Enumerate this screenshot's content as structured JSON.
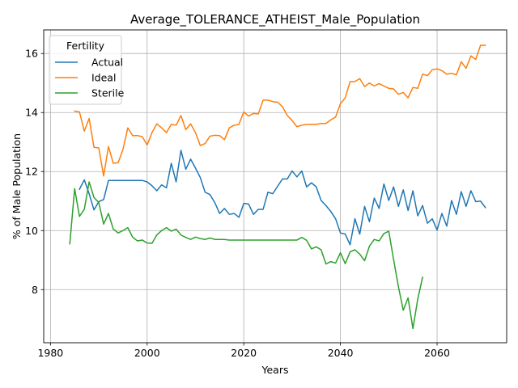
{
  "chart_data": {
    "type": "line",
    "title": "Average_TOLERANCE_ATHEIST_Male_Population",
    "xlabel": "Years",
    "ylabel": "% of Male Population",
    "xlim": [
      1978.6,
      2074.4
    ],
    "ylim": [
      6.2,
      16.8
    ],
    "xticks": [
      1980,
      2000,
      2020,
      2040,
      2060
    ],
    "yticks": [
      8,
      10,
      12,
      14,
      16
    ],
    "grid": true,
    "legend": {
      "title": "Fertility",
      "placement": "top-left"
    },
    "series": [
      {
        "name": "Actual",
        "color": "#1f77b4",
        "points": [
          [
            1986,
            11.4
          ],
          [
            1987,
            11.72
          ],
          [
            1988,
            11.25
          ],
          [
            1989,
            10.7
          ],
          [
            1990,
            10.98
          ],
          [
            1991,
            11.05
          ],
          [
            1992,
            11.7
          ],
          [
            1993,
            11.7
          ],
          [
            1994,
            11.7
          ],
          [
            1995,
            11.7
          ],
          [
            1996,
            11.7
          ],
          [
            1997,
            11.7
          ],
          [
            1998,
            11.7
          ],
          [
            1999,
            11.7
          ],
          [
            2000,
            11.65
          ],
          [
            2001,
            11.52
          ],
          [
            2002,
            11.35
          ],
          [
            2003,
            11.55
          ],
          [
            2004,
            11.45
          ],
          [
            2005,
            12.28
          ],
          [
            2006,
            11.65
          ],
          [
            2007,
            12.72
          ],
          [
            2008,
            12.08
          ],
          [
            2009,
            12.42
          ],
          [
            2010,
            12.12
          ],
          [
            2011,
            11.8
          ],
          [
            2012,
            11.3
          ],
          [
            2013,
            11.22
          ],
          [
            2014,
            10.95
          ],
          [
            2015,
            10.58
          ],
          [
            2016,
            10.75
          ],
          [
            2017,
            10.55
          ],
          [
            2018,
            10.58
          ],
          [
            2019,
            10.45
          ],
          [
            2020,
            10.92
          ],
          [
            2021,
            10.9
          ],
          [
            2022,
            10.55
          ],
          [
            2023,
            10.72
          ],
          [
            2024,
            10.72
          ],
          [
            2025,
            11.3
          ],
          [
            2026,
            11.25
          ],
          [
            2027,
            11.5
          ],
          [
            2028,
            11.75
          ],
          [
            2029,
            11.75
          ],
          [
            2030,
            12.02
          ],
          [
            2031,
            11.82
          ],
          [
            2032,
            12.02
          ],
          [
            2033,
            11.48
          ],
          [
            2034,
            11.62
          ],
          [
            2035,
            11.48
          ],
          [
            2036,
            11.02
          ],
          [
            2037,
            10.85
          ],
          [
            2038,
            10.65
          ],
          [
            2039,
            10.4
          ],
          [
            2040,
            9.92
          ],
          [
            2041,
            9.88
          ],
          [
            2042,
            9.52
          ],
          [
            2043,
            10.4
          ],
          [
            2044,
            9.88
          ],
          [
            2045,
            10.82
          ],
          [
            2046,
            10.3
          ],
          [
            2047,
            11.1
          ],
          [
            2048,
            10.75
          ],
          [
            2049,
            11.58
          ],
          [
            2050,
            11.02
          ],
          [
            2051,
            11.48
          ],
          [
            2052,
            10.82
          ],
          [
            2053,
            11.38
          ],
          [
            2054,
            10.68
          ],
          [
            2055,
            11.35
          ],
          [
            2056,
            10.5
          ],
          [
            2057,
            10.85
          ],
          [
            2058,
            10.25
          ],
          [
            2059,
            10.4
          ],
          [
            2060,
            10.02
          ],
          [
            2061,
            10.58
          ],
          [
            2062,
            10.15
          ],
          [
            2063,
            11.02
          ],
          [
            2064,
            10.55
          ],
          [
            2065,
            11.32
          ],
          [
            2066,
            10.82
          ],
          [
            2067,
            11.35
          ],
          [
            2068,
            10.98
          ],
          [
            2069,
            11.0
          ],
          [
            2070,
            10.78
          ]
        ]
      },
      {
        "name": "Ideal",
        "color": "#ff7f0e",
        "points": [
          [
            1985,
            14.05
          ],
          [
            1986,
            14.02
          ],
          [
            1987,
            13.37
          ],
          [
            1988,
            13.8
          ],
          [
            1989,
            12.82
          ],
          [
            1990,
            12.8
          ],
          [
            1991,
            11.85
          ],
          [
            1992,
            12.85
          ],
          [
            1993,
            12.28
          ],
          [
            1994,
            12.3
          ],
          [
            1995,
            12.75
          ],
          [
            1996,
            13.48
          ],
          [
            1997,
            13.22
          ],
          [
            1998,
            13.22
          ],
          [
            1999,
            13.18
          ],
          [
            2000,
            12.9
          ],
          [
            2001,
            13.32
          ],
          [
            2002,
            13.62
          ],
          [
            2003,
            13.48
          ],
          [
            2004,
            13.32
          ],
          [
            2005,
            13.6
          ],
          [
            2006,
            13.57
          ],
          [
            2007,
            13.9
          ],
          [
            2008,
            13.42
          ],
          [
            2009,
            13.62
          ],
          [
            2010,
            13.32
          ],
          [
            2011,
            12.88
          ],
          [
            2012,
            12.95
          ],
          [
            2013,
            13.2
          ],
          [
            2014,
            13.23
          ],
          [
            2015,
            13.22
          ],
          [
            2016,
            13.08
          ],
          [
            2017,
            13.48
          ],
          [
            2018,
            13.57
          ],
          [
            2019,
            13.6
          ],
          [
            2020,
            14.02
          ],
          [
            2021,
            13.88
          ],
          [
            2022,
            13.97
          ],
          [
            2023,
            13.95
          ],
          [
            2024,
            14.42
          ],
          [
            2025,
            14.42
          ],
          [
            2026,
            14.37
          ],
          [
            2027,
            14.35
          ],
          [
            2028,
            14.2
          ],
          [
            2029,
            13.9
          ],
          [
            2030,
            13.73
          ],
          [
            2031,
            13.52
          ],
          [
            2032,
            13.57
          ],
          [
            2033,
            13.6
          ],
          [
            2034,
            13.6
          ],
          [
            2035,
            13.6
          ],
          [
            2036,
            13.63
          ],
          [
            2037,
            13.63
          ],
          [
            2038,
            13.75
          ],
          [
            2039,
            13.85
          ],
          [
            2040,
            14.3
          ],
          [
            2041,
            14.5
          ],
          [
            2042,
            15.05
          ],
          [
            2043,
            15.05
          ],
          [
            2044,
            15.15
          ],
          [
            2045,
            14.88
          ],
          [
            2046,
            15.0
          ],
          [
            2047,
            14.9
          ],
          [
            2048,
            14.98
          ],
          [
            2049,
            14.9
          ],
          [
            2050,
            14.82
          ],
          [
            2051,
            14.8
          ],
          [
            2052,
            14.62
          ],
          [
            2053,
            14.68
          ],
          [
            2054,
            14.5
          ],
          [
            2055,
            14.85
          ],
          [
            2056,
            14.82
          ],
          [
            2057,
            15.3
          ],
          [
            2058,
            15.25
          ],
          [
            2059,
            15.45
          ],
          [
            2060,
            15.48
          ],
          [
            2061,
            15.42
          ],
          [
            2062,
            15.3
          ],
          [
            2063,
            15.33
          ],
          [
            2064,
            15.28
          ],
          [
            2065,
            15.72
          ],
          [
            2066,
            15.5
          ],
          [
            2067,
            15.92
          ],
          [
            2068,
            15.8
          ],
          [
            2069,
            16.28
          ],
          [
            2070,
            16.28
          ]
        ]
      },
      {
        "name": "Sterile",
        "color": "#2ca02c",
        "points": [
          [
            1984,
            9.55
          ],
          [
            1985,
            11.42
          ],
          [
            1986,
            10.48
          ],
          [
            1987,
            10.72
          ],
          [
            1988,
            11.65
          ],
          [
            1989,
            11.12
          ],
          [
            1990,
            10.95
          ],
          [
            1991,
            10.22
          ],
          [
            1992,
            10.58
          ],
          [
            1993,
            10.05
          ],
          [
            1994,
            9.92
          ],
          [
            1995,
            10.0
          ],
          [
            1996,
            10.1
          ],
          [
            1997,
            9.78
          ],
          [
            1998,
            9.65
          ],
          [
            1999,
            9.68
          ],
          [
            2000,
            9.58
          ],
          [
            2001,
            9.57
          ],
          [
            2002,
            9.85
          ],
          [
            2003,
            10.0
          ],
          [
            2004,
            10.1
          ],
          [
            2005,
            9.98
          ],
          [
            2006,
            10.05
          ],
          [
            2007,
            9.85
          ],
          [
            2008,
            9.77
          ],
          [
            2009,
            9.7
          ],
          [
            2010,
            9.78
          ],
          [
            2011,
            9.73
          ],
          [
            2012,
            9.7
          ],
          [
            2013,
            9.75
          ],
          [
            2014,
            9.7
          ],
          [
            2015,
            9.7
          ],
          [
            2016,
            9.7
          ],
          [
            2017,
            9.68
          ],
          [
            2018,
            9.68
          ],
          [
            2019,
            9.68
          ],
          [
            2020,
            9.68
          ],
          [
            2021,
            9.68
          ],
          [
            2022,
            9.68
          ],
          [
            2023,
            9.68
          ],
          [
            2024,
            9.68
          ],
          [
            2025,
            9.68
          ],
          [
            2026,
            9.68
          ],
          [
            2027,
            9.68
          ],
          [
            2028,
            9.68
          ],
          [
            2029,
            9.68
          ],
          [
            2030,
            9.68
          ],
          [
            2031,
            9.68
          ],
          [
            2032,
            9.77
          ],
          [
            2033,
            9.67
          ],
          [
            2034,
            9.38
          ],
          [
            2035,
            9.45
          ],
          [
            2036,
            9.35
          ],
          [
            2037,
            8.87
          ],
          [
            2038,
            8.95
          ],
          [
            2039,
            8.9
          ],
          [
            2040,
            9.25
          ],
          [
            2041,
            8.88
          ],
          [
            2042,
            9.28
          ],
          [
            2043,
            9.35
          ],
          [
            2044,
            9.2
          ],
          [
            2045,
            8.98
          ],
          [
            2046,
            9.47
          ],
          [
            2047,
            9.7
          ],
          [
            2048,
            9.65
          ],
          [
            2049,
            9.9
          ],
          [
            2050,
            9.98
          ],
          [
            2051,
            9.02
          ],
          [
            2052,
            8.1
          ],
          [
            2053,
            7.3
          ],
          [
            2054,
            7.72
          ],
          [
            2055,
            6.68
          ],
          [
            2056,
            7.68
          ],
          [
            2057,
            8.42
          ]
        ]
      }
    ]
  }
}
